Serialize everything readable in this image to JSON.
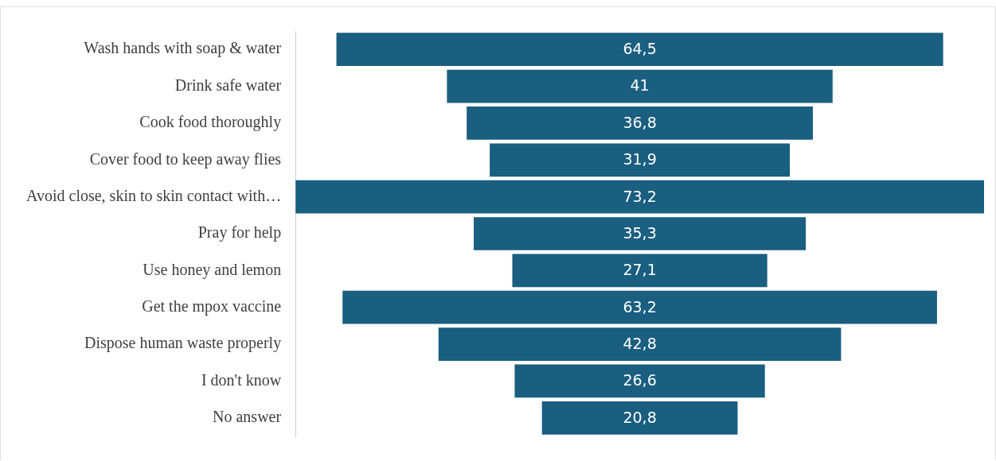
{
  "chart_data": {
    "type": "other",
    "categories": [
      "Wash hands with soap & water",
      "Drink safe water",
      "Cook food thoroughly",
      "Cover food to keep away flies",
      "Avoid close, skin to skin contact with…",
      "Pray for help",
      "Use honey and lemon",
      "Get the mpox vaccine",
      "Dispose human waste properly",
      "I don't know",
      "No answer"
    ],
    "values": [
      64.5,
      41,
      36.8,
      31.9,
      73.2,
      35.3,
      27.1,
      63.2,
      42.8,
      26.6,
      20.8
    ],
    "value_labels": [
      "64,5",
      "41",
      "36,8",
      "31,9",
      "73,2",
      "35,3",
      "27,1",
      "63,2",
      "42,8",
      "26,6",
      "20,8"
    ],
    "color": "#1a5e80"
  }
}
